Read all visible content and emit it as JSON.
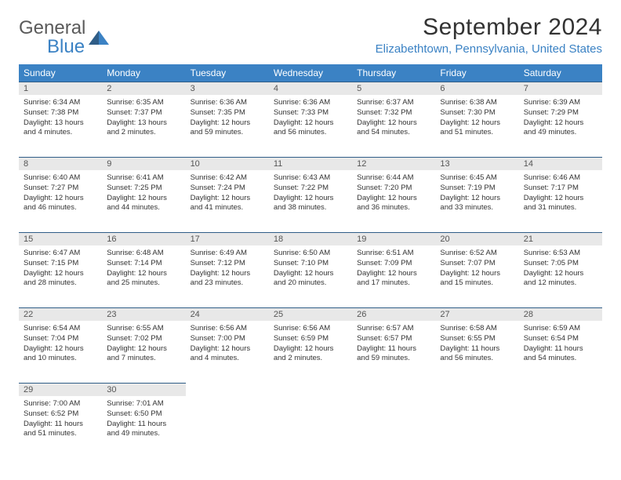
{
  "logo": {
    "general": "General",
    "blue": "Blue"
  },
  "title": "September 2024",
  "location": "Elizabethtown, Pennsylvania, United States",
  "colors": {
    "header_bg": "#3b82c4",
    "daynum_bg": "#e8e8e8",
    "daynum_border": "#2f5d87",
    "text": "#333333"
  },
  "day_names": [
    "Sunday",
    "Monday",
    "Tuesday",
    "Wednesday",
    "Thursday",
    "Friday",
    "Saturday"
  ],
  "weeks": [
    [
      {
        "n": "1",
        "sr": "Sunrise: 6:34 AM",
        "ss": "Sunset: 7:38 PM",
        "d1": "Daylight: 13 hours",
        "d2": "and 4 minutes."
      },
      {
        "n": "2",
        "sr": "Sunrise: 6:35 AM",
        "ss": "Sunset: 7:37 PM",
        "d1": "Daylight: 13 hours",
        "d2": "and 2 minutes."
      },
      {
        "n": "3",
        "sr": "Sunrise: 6:36 AM",
        "ss": "Sunset: 7:35 PM",
        "d1": "Daylight: 12 hours",
        "d2": "and 59 minutes."
      },
      {
        "n": "4",
        "sr": "Sunrise: 6:36 AM",
        "ss": "Sunset: 7:33 PM",
        "d1": "Daylight: 12 hours",
        "d2": "and 56 minutes."
      },
      {
        "n": "5",
        "sr": "Sunrise: 6:37 AM",
        "ss": "Sunset: 7:32 PM",
        "d1": "Daylight: 12 hours",
        "d2": "and 54 minutes."
      },
      {
        "n": "6",
        "sr": "Sunrise: 6:38 AM",
        "ss": "Sunset: 7:30 PM",
        "d1": "Daylight: 12 hours",
        "d2": "and 51 minutes."
      },
      {
        "n": "7",
        "sr": "Sunrise: 6:39 AM",
        "ss": "Sunset: 7:29 PM",
        "d1": "Daylight: 12 hours",
        "d2": "and 49 minutes."
      }
    ],
    [
      {
        "n": "8",
        "sr": "Sunrise: 6:40 AM",
        "ss": "Sunset: 7:27 PM",
        "d1": "Daylight: 12 hours",
        "d2": "and 46 minutes."
      },
      {
        "n": "9",
        "sr": "Sunrise: 6:41 AM",
        "ss": "Sunset: 7:25 PM",
        "d1": "Daylight: 12 hours",
        "d2": "and 44 minutes."
      },
      {
        "n": "10",
        "sr": "Sunrise: 6:42 AM",
        "ss": "Sunset: 7:24 PM",
        "d1": "Daylight: 12 hours",
        "d2": "and 41 minutes."
      },
      {
        "n": "11",
        "sr": "Sunrise: 6:43 AM",
        "ss": "Sunset: 7:22 PM",
        "d1": "Daylight: 12 hours",
        "d2": "and 38 minutes."
      },
      {
        "n": "12",
        "sr": "Sunrise: 6:44 AM",
        "ss": "Sunset: 7:20 PM",
        "d1": "Daylight: 12 hours",
        "d2": "and 36 minutes."
      },
      {
        "n": "13",
        "sr": "Sunrise: 6:45 AM",
        "ss": "Sunset: 7:19 PM",
        "d1": "Daylight: 12 hours",
        "d2": "and 33 minutes."
      },
      {
        "n": "14",
        "sr": "Sunrise: 6:46 AM",
        "ss": "Sunset: 7:17 PM",
        "d1": "Daylight: 12 hours",
        "d2": "and 31 minutes."
      }
    ],
    [
      {
        "n": "15",
        "sr": "Sunrise: 6:47 AM",
        "ss": "Sunset: 7:15 PM",
        "d1": "Daylight: 12 hours",
        "d2": "and 28 minutes."
      },
      {
        "n": "16",
        "sr": "Sunrise: 6:48 AM",
        "ss": "Sunset: 7:14 PM",
        "d1": "Daylight: 12 hours",
        "d2": "and 25 minutes."
      },
      {
        "n": "17",
        "sr": "Sunrise: 6:49 AM",
        "ss": "Sunset: 7:12 PM",
        "d1": "Daylight: 12 hours",
        "d2": "and 23 minutes."
      },
      {
        "n": "18",
        "sr": "Sunrise: 6:50 AM",
        "ss": "Sunset: 7:10 PM",
        "d1": "Daylight: 12 hours",
        "d2": "and 20 minutes."
      },
      {
        "n": "19",
        "sr": "Sunrise: 6:51 AM",
        "ss": "Sunset: 7:09 PM",
        "d1": "Daylight: 12 hours",
        "d2": "and 17 minutes."
      },
      {
        "n": "20",
        "sr": "Sunrise: 6:52 AM",
        "ss": "Sunset: 7:07 PM",
        "d1": "Daylight: 12 hours",
        "d2": "and 15 minutes."
      },
      {
        "n": "21",
        "sr": "Sunrise: 6:53 AM",
        "ss": "Sunset: 7:05 PM",
        "d1": "Daylight: 12 hours",
        "d2": "and 12 minutes."
      }
    ],
    [
      {
        "n": "22",
        "sr": "Sunrise: 6:54 AM",
        "ss": "Sunset: 7:04 PM",
        "d1": "Daylight: 12 hours",
        "d2": "and 10 minutes."
      },
      {
        "n": "23",
        "sr": "Sunrise: 6:55 AM",
        "ss": "Sunset: 7:02 PM",
        "d1": "Daylight: 12 hours",
        "d2": "and 7 minutes."
      },
      {
        "n": "24",
        "sr": "Sunrise: 6:56 AM",
        "ss": "Sunset: 7:00 PM",
        "d1": "Daylight: 12 hours",
        "d2": "and 4 minutes."
      },
      {
        "n": "25",
        "sr": "Sunrise: 6:56 AM",
        "ss": "Sunset: 6:59 PM",
        "d1": "Daylight: 12 hours",
        "d2": "and 2 minutes."
      },
      {
        "n": "26",
        "sr": "Sunrise: 6:57 AM",
        "ss": "Sunset: 6:57 PM",
        "d1": "Daylight: 11 hours",
        "d2": "and 59 minutes."
      },
      {
        "n": "27",
        "sr": "Sunrise: 6:58 AM",
        "ss": "Sunset: 6:55 PM",
        "d1": "Daylight: 11 hours",
        "d2": "and 56 minutes."
      },
      {
        "n": "28",
        "sr": "Sunrise: 6:59 AM",
        "ss": "Sunset: 6:54 PM",
        "d1": "Daylight: 11 hours",
        "d2": "and 54 minutes."
      }
    ],
    [
      {
        "n": "29",
        "sr": "Sunrise: 7:00 AM",
        "ss": "Sunset: 6:52 PM",
        "d1": "Daylight: 11 hours",
        "d2": "and 51 minutes."
      },
      {
        "n": "30",
        "sr": "Sunrise: 7:01 AM",
        "ss": "Sunset: 6:50 PM",
        "d1": "Daylight: 11 hours",
        "d2": "and 49 minutes."
      },
      null,
      null,
      null,
      null,
      null
    ]
  ]
}
